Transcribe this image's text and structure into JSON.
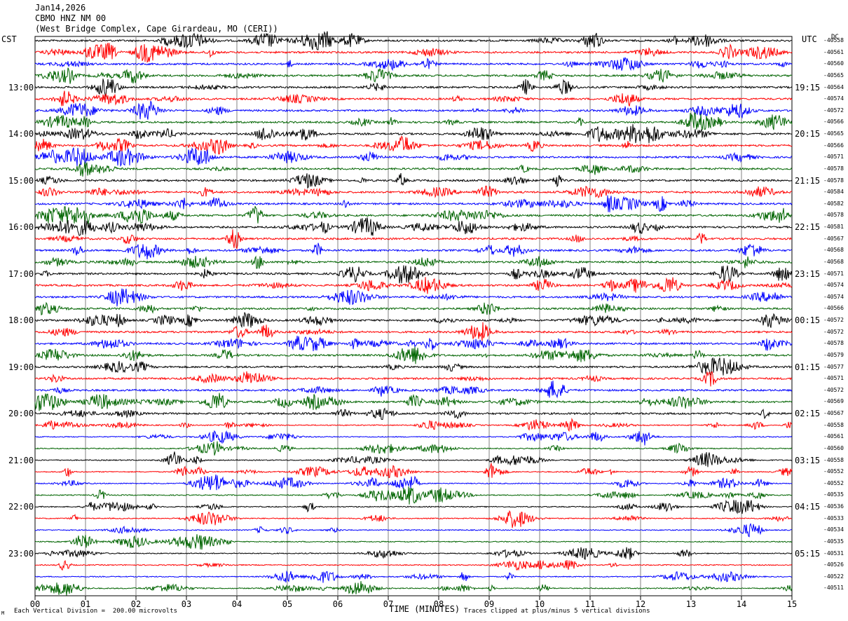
{
  "header": {
    "date": "Jan14,2026",
    "station": "CBMO HNZ NM 00",
    "site": "(West Bridge Complex, Cape Girardeau, MO (CERI))"
  },
  "left_zone": "CST",
  "right_zone": "UTC",
  "dc_header": "DC",
  "footer": {
    "scale_note": "Each Vertical Division =  200.00 microvolts",
    "clip_note": "Traces clipped at plus/minus 5 vertical divisions",
    "corner_mark": "M"
  },
  "colors": {
    "cycle": [
      "#000000",
      "#ff0000",
      "#0000ff",
      "#006400"
    ],
    "grid": "#808080"
  },
  "chart_data": {
    "type": "line",
    "title": "",
    "xlabel": "TIME (MINUTES)",
    "xlim": [
      0,
      15
    ],
    "x_ticks": [
      "00",
      "01",
      "02",
      "03",
      "04",
      "05",
      "06",
      "07",
      "08",
      "09",
      "10",
      "11",
      "12",
      "13",
      "14",
      "15"
    ],
    "left_hour_labels": [
      "13:00",
      "14:00",
      "15:00",
      "16:00",
      "17:00",
      "18:00",
      "19:00",
      "20:00",
      "21:00",
      "22:00",
      "23:00"
    ],
    "right_hour_labels": [
      "19:15",
      "20:15",
      "21:15",
      "22:15",
      "23:15",
      "00:15",
      "01:15",
      "02:15",
      "03:15",
      "04:15",
      "05:15"
    ],
    "dc_offsets": [
      "-40558",
      "-40561",
      "-40560",
      "-40565",
      "-40564",
      "-40574",
      "-40572",
      "-40566",
      "-40565",
      "-40566",
      "-40571",
      "-40578",
      "-40578",
      "-40584",
      "-40582",
      "-40578",
      "-40581",
      "-40567",
      "-40568",
      "-40568",
      "-40571",
      "-40574",
      "-40574",
      "-40566",
      "-40572",
      "-40572",
      "-40578",
      "-40579",
      "-40577",
      "-40571",
      "-40572",
      "-40569",
      "-40567",
      "-40558",
      "-40561",
      "-40560",
      "-40558",
      "-40552",
      "-40552",
      "-40535",
      "-40536",
      "-40533",
      "-40534",
      "-40535",
      "-40531",
      "-40526",
      "-40522",
      "-40511"
    ],
    "trace_count": 48,
    "minutes_per_trace": 15,
    "trace_colors": [
      "black",
      "red",
      "blue",
      "green"
    ],
    "grid": true
  }
}
